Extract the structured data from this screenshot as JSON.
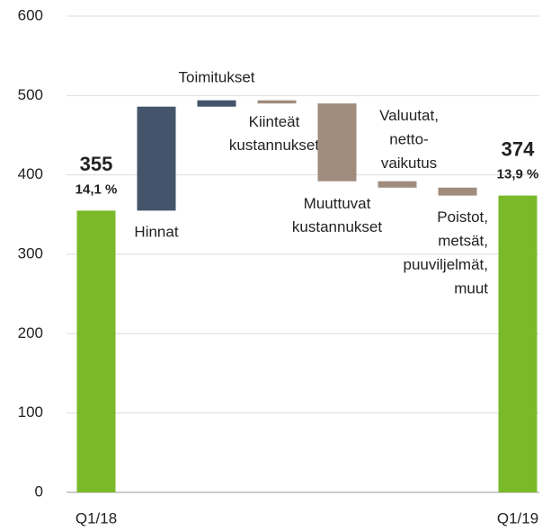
{
  "chart_data": {
    "type": "waterfall",
    "categories": [
      "Q1/18",
      "Hinnat",
      "Toimitukset",
      "Kiinteät\nkustannukset",
      "Muuttuvat\nkustannukset",
      "Valuutat,\nnetto-\nvaikutus",
      "Poistot,\nmetsät,\npuuviljelmät,\nmuut",
      "Q1/19"
    ],
    "values": [
      355,
      131,
      8,
      -4,
      -98,
      -8,
      -10,
      374
    ],
    "measures": [
      "total",
      "relative",
      "relative",
      "relative",
      "relative",
      "relative",
      "relative",
      "total"
    ],
    "annotations": [
      "14,1 %",
      null,
      null,
      null,
      null,
      null,
      null,
      "13,9 %"
    ],
    "total_color": "#7ab929",
    "increase_color": "#44546a",
    "decrease_color": "#a08c7d",
    "ylim": [
      0,
      600
    ],
    "yticks": [
      0,
      100,
      200,
      300,
      400,
      500,
      600
    ],
    "grid": true
  }
}
